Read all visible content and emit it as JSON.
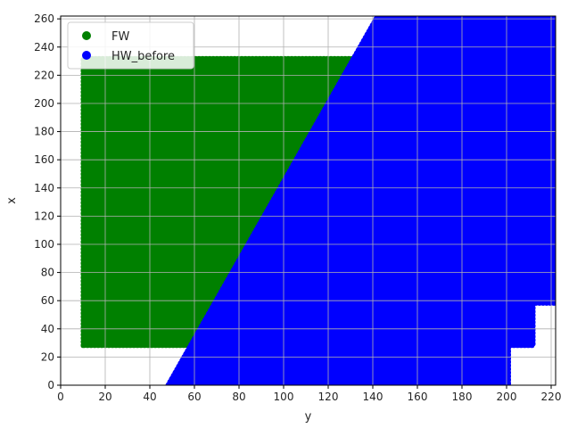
{
  "chart_data": {
    "type": "scatter",
    "title": "",
    "xlabel": "y",
    "ylabel": "x",
    "xlim": [
      0,
      222
    ],
    "ylim": [
      0,
      262
    ],
    "xticks": [
      0,
      20,
      40,
      60,
      80,
      100,
      120,
      140,
      160,
      180,
      200,
      220
    ],
    "yticks": [
      0,
      20,
      40,
      60,
      80,
      100,
      120,
      140,
      160,
      180,
      200,
      220,
      240,
      260
    ],
    "grid": true,
    "legend_position": "top-left",
    "series": [
      {
        "name": "FW",
        "color": "#008000",
        "region": [
          [
            10,
            28
          ],
          [
            10,
            232
          ],
          [
            132,
            232
          ],
          [
            60,
            28
          ]
        ]
      },
      {
        "name": "HW_before",
        "color": "#0000ff",
        "region": [
          [
            48,
            0
          ],
          [
            142,
            262
          ],
          [
            222,
            262
          ],
          [
            222,
            58
          ],
          [
            212,
            58
          ],
          [
            212,
            28
          ],
          [
            201,
            28
          ],
          [
            201,
            0
          ]
        ]
      }
    ]
  }
}
